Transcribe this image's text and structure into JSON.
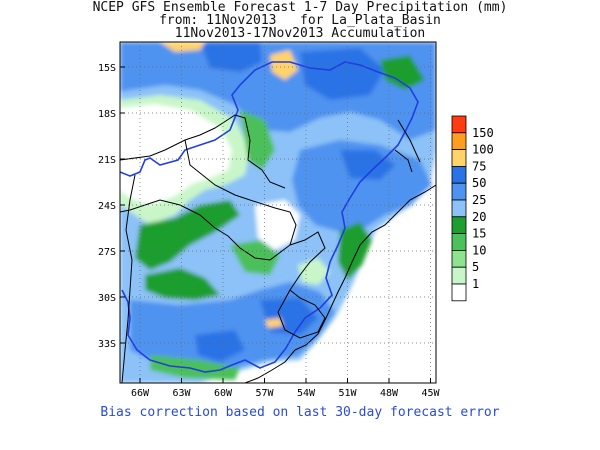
{
  "title": {
    "line1": "NCEP GFS Ensemble Forecast 1-7 Day Precipitation (mm)",
    "line2": "from: 11Nov2013   for La_Plata_Basin",
    "line3": "11Nov2013-17Nov2013 Accumulation"
  },
  "lat_labels": [
    "15S",
    "18S",
    "21S",
    "24S",
    "27S",
    "30S",
    "33S"
  ],
  "lon_labels": [
    "66W",
    "63W",
    "60W",
    "57W",
    "54W",
    "51W",
    "48W",
    "45W"
  ],
  "legend": {
    "labels": [
      "150",
      "100",
      "75",
      "50",
      "25",
      "20",
      "15",
      "10",
      "5",
      "1"
    ],
    "colors": [
      "#ff3b10",
      "#ff9d20",
      "#ffd36b",
      "#2a73e6",
      "#4f93f0",
      "#8cc2f7",
      "#1e9e2e",
      "#4cc05a",
      "#8ee38e",
      "#c9f6c9",
      "#ffffff"
    ]
  },
  "footer": "Bias correction based on last 30-day forecast error"
}
